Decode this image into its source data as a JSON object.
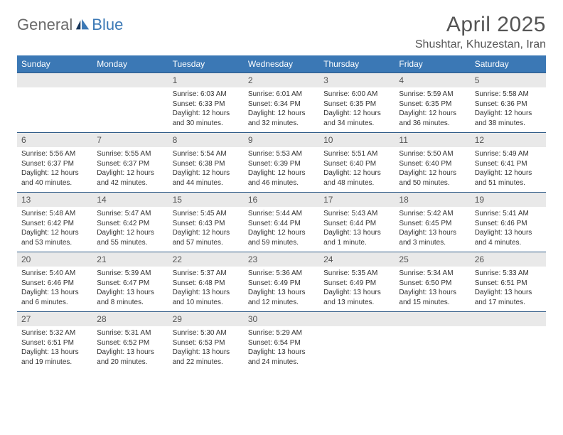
{
  "brand": {
    "part1": "General",
    "part2": "Blue"
  },
  "title": "April 2025",
  "location": "Shushtar, Khuzestan, Iran",
  "colors": {
    "header_bg": "#3b78b5",
    "header_text": "#ffffff",
    "daynum_bg": "#e9e9e9",
    "rule": "#2f5a87",
    "body_text": "#333333",
    "title_text": "#555555"
  },
  "dow": [
    "Sunday",
    "Monday",
    "Tuesday",
    "Wednesday",
    "Thursday",
    "Friday",
    "Saturday"
  ],
  "weeks": [
    [
      null,
      null,
      {
        "n": "1",
        "sunrise": "6:03 AM",
        "sunset": "6:33 PM",
        "daylight": "12 hours and 30 minutes."
      },
      {
        "n": "2",
        "sunrise": "6:01 AM",
        "sunset": "6:34 PM",
        "daylight": "12 hours and 32 minutes."
      },
      {
        "n": "3",
        "sunrise": "6:00 AM",
        "sunset": "6:35 PM",
        "daylight": "12 hours and 34 minutes."
      },
      {
        "n": "4",
        "sunrise": "5:59 AM",
        "sunset": "6:35 PM",
        "daylight": "12 hours and 36 minutes."
      },
      {
        "n": "5",
        "sunrise": "5:58 AM",
        "sunset": "6:36 PM",
        "daylight": "12 hours and 38 minutes."
      }
    ],
    [
      {
        "n": "6",
        "sunrise": "5:56 AM",
        "sunset": "6:37 PM",
        "daylight": "12 hours and 40 minutes."
      },
      {
        "n": "7",
        "sunrise": "5:55 AM",
        "sunset": "6:37 PM",
        "daylight": "12 hours and 42 minutes."
      },
      {
        "n": "8",
        "sunrise": "5:54 AM",
        "sunset": "6:38 PM",
        "daylight": "12 hours and 44 minutes."
      },
      {
        "n": "9",
        "sunrise": "5:53 AM",
        "sunset": "6:39 PM",
        "daylight": "12 hours and 46 minutes."
      },
      {
        "n": "10",
        "sunrise": "5:51 AM",
        "sunset": "6:40 PM",
        "daylight": "12 hours and 48 minutes."
      },
      {
        "n": "11",
        "sunrise": "5:50 AM",
        "sunset": "6:40 PM",
        "daylight": "12 hours and 50 minutes."
      },
      {
        "n": "12",
        "sunrise": "5:49 AM",
        "sunset": "6:41 PM",
        "daylight": "12 hours and 51 minutes."
      }
    ],
    [
      {
        "n": "13",
        "sunrise": "5:48 AM",
        "sunset": "6:42 PM",
        "daylight": "12 hours and 53 minutes."
      },
      {
        "n": "14",
        "sunrise": "5:47 AM",
        "sunset": "6:42 PM",
        "daylight": "12 hours and 55 minutes."
      },
      {
        "n": "15",
        "sunrise": "5:45 AM",
        "sunset": "6:43 PM",
        "daylight": "12 hours and 57 minutes."
      },
      {
        "n": "16",
        "sunrise": "5:44 AM",
        "sunset": "6:44 PM",
        "daylight": "12 hours and 59 minutes."
      },
      {
        "n": "17",
        "sunrise": "5:43 AM",
        "sunset": "6:44 PM",
        "daylight": "13 hours and 1 minute."
      },
      {
        "n": "18",
        "sunrise": "5:42 AM",
        "sunset": "6:45 PM",
        "daylight": "13 hours and 3 minutes."
      },
      {
        "n": "19",
        "sunrise": "5:41 AM",
        "sunset": "6:46 PM",
        "daylight": "13 hours and 4 minutes."
      }
    ],
    [
      {
        "n": "20",
        "sunrise": "5:40 AM",
        "sunset": "6:46 PM",
        "daylight": "13 hours and 6 minutes."
      },
      {
        "n": "21",
        "sunrise": "5:39 AM",
        "sunset": "6:47 PM",
        "daylight": "13 hours and 8 minutes."
      },
      {
        "n": "22",
        "sunrise": "5:37 AM",
        "sunset": "6:48 PM",
        "daylight": "13 hours and 10 minutes."
      },
      {
        "n": "23",
        "sunrise": "5:36 AM",
        "sunset": "6:49 PM",
        "daylight": "13 hours and 12 minutes."
      },
      {
        "n": "24",
        "sunrise": "5:35 AM",
        "sunset": "6:49 PM",
        "daylight": "13 hours and 13 minutes."
      },
      {
        "n": "25",
        "sunrise": "5:34 AM",
        "sunset": "6:50 PM",
        "daylight": "13 hours and 15 minutes."
      },
      {
        "n": "26",
        "sunrise": "5:33 AM",
        "sunset": "6:51 PM",
        "daylight": "13 hours and 17 minutes."
      }
    ],
    [
      {
        "n": "27",
        "sunrise": "5:32 AM",
        "sunset": "6:51 PM",
        "daylight": "13 hours and 19 minutes."
      },
      {
        "n": "28",
        "sunrise": "5:31 AM",
        "sunset": "6:52 PM",
        "daylight": "13 hours and 20 minutes."
      },
      {
        "n": "29",
        "sunrise": "5:30 AM",
        "sunset": "6:53 PM",
        "daylight": "13 hours and 22 minutes."
      },
      {
        "n": "30",
        "sunrise": "5:29 AM",
        "sunset": "6:54 PM",
        "daylight": "13 hours and 24 minutes."
      },
      null,
      null,
      null
    ]
  ],
  "labels": {
    "sunrise": "Sunrise:",
    "sunset": "Sunset:",
    "daylight": "Daylight:"
  }
}
